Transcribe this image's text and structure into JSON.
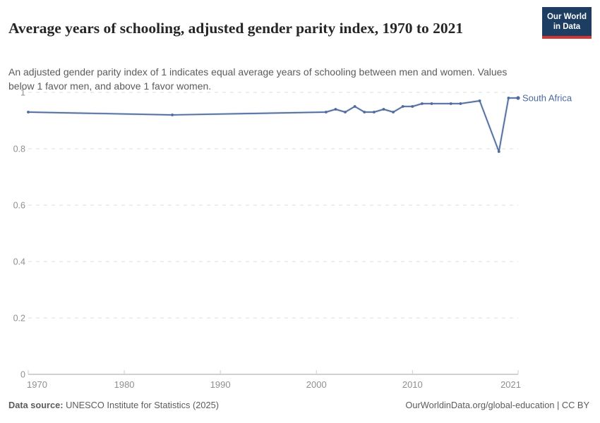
{
  "header": {
    "title": "Average years of schooling, adjusted gender parity index, 1970 to 2021",
    "subtitle": "An adjusted gender parity index of 1 indicates equal average years of schooling between men and women. Values below 1 favor men, and above 1 favor women.",
    "logo": {
      "text": "Our World in Data",
      "bg_color": "#1d3d63",
      "accent_color": "#d13832"
    }
  },
  "chart_data": {
    "type": "line",
    "title": "Average years of schooling, adjusted gender parity index, 1970 to 2021",
    "xlabel": "",
    "ylabel": "",
    "xlim": [
      1970,
      2021
    ],
    "ylim": [
      0,
      1
    ],
    "grid": "horizontal-dashed",
    "legend_position": "line-end-label",
    "x_ticks": [
      1970,
      1980,
      1990,
      2000,
      2010,
      2021
    ],
    "y_ticks": [
      {
        "value": 0,
        "label": "0"
      },
      {
        "value": 0.2,
        "label": "0.2"
      },
      {
        "value": 0.4,
        "label": "0.4"
      },
      {
        "value": 0.6,
        "label": "0.6"
      },
      {
        "value": 0.8,
        "label": "0.8"
      },
      {
        "value": 1,
        "label": "1"
      }
    ],
    "series": [
      {
        "name": "South Africa",
        "color": "#4C6A9C",
        "points": [
          {
            "year": 1970,
            "value": 0.93
          },
          {
            "year": 1985,
            "value": 0.92
          },
          {
            "year": 2001,
            "value": 0.93
          },
          {
            "year": 2002,
            "value": 0.94
          },
          {
            "year": 2003,
            "value": 0.93
          },
          {
            "year": 2004,
            "value": 0.95
          },
          {
            "year": 2005,
            "value": 0.93
          },
          {
            "year": 2006,
            "value": 0.93
          },
          {
            "year": 2007,
            "value": 0.94
          },
          {
            "year": 2008,
            "value": 0.93
          },
          {
            "year": 2009,
            "value": 0.95
          },
          {
            "year": 2010,
            "value": 0.95
          },
          {
            "year": 2011,
            "value": 0.96
          },
          {
            "year": 2012,
            "value": 0.96
          },
          {
            "year": 2014,
            "value": 0.96
          },
          {
            "year": 2015,
            "value": 0.96
          },
          {
            "year": 2017,
            "value": 0.97
          },
          {
            "year": 2019,
            "value": 0.79
          },
          {
            "year": 2020,
            "value": 0.98
          },
          {
            "year": 2021,
            "value": 0.98
          }
        ]
      }
    ]
  },
  "footer": {
    "datasource_label": "Data source:",
    "datasource_value": " UNESCO Institute for Statistics (2025)",
    "link": "OurWorldinData.org/global-education | CC BY"
  }
}
